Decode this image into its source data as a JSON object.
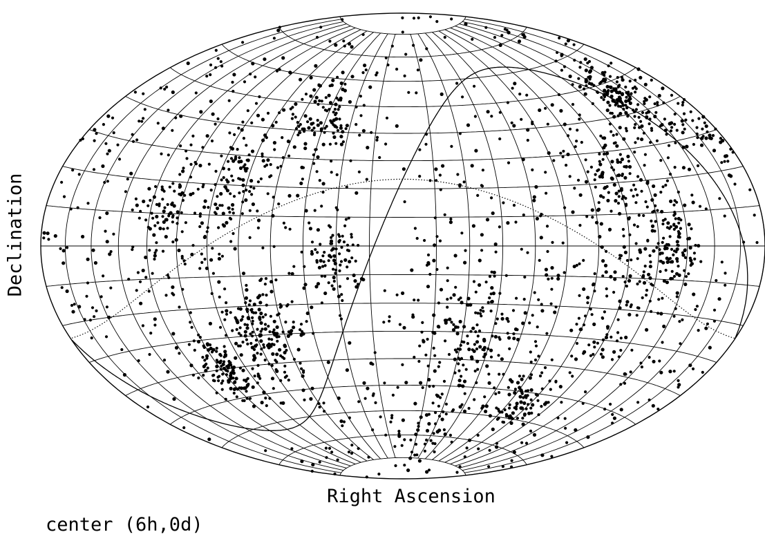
{
  "chart_data": {
    "type": "scatter",
    "title": "",
    "projection": "Aitoff-Hammer equal-area all-sky",
    "xlabel": "Right Ascension",
    "ylabel": "Declination",
    "caption": "center (6h,0d)",
    "center": {
      "ra_hours": 6,
      "dec_deg": 0
    },
    "grid": true,
    "grid_ra_step_hours": 1,
    "grid_dec_step_deg": 10,
    "reference_curves": [
      "celestial equator of a second coordinate system (solid S-curve)",
      "boundary circle (dotted)"
    ],
    "point_color": "#000000",
    "line_color": "#000000",
    "series": [
      {
        "clusters": [
          {
            "ra_hours": 9.0,
            "dec_deg": 45,
            "count": 90,
            "spread": 8
          },
          {
            "ra_hours": 11.5,
            "dec_deg": 20,
            "count": 110,
            "spread": 10
          },
          {
            "ra_hours": 10.5,
            "dec_deg": -30,
            "count": 150,
            "spread": 9
          },
          {
            "ra_hours": 12.8,
            "dec_deg": -40,
            "count": 120,
            "spread": 6
          },
          {
            "ra_hours": 8.0,
            "dec_deg": -5,
            "count": 80,
            "spread": 7
          },
          {
            "ra_hours": 13.5,
            "dec_deg": 10,
            "count": 60,
            "spread": 7
          },
          {
            "ra_hours": 20.5,
            "dec_deg": 45,
            "count": 160,
            "spread": 7
          },
          {
            "ra_hours": 22.8,
            "dec_deg": 20,
            "count": 110,
            "spread": 10
          },
          {
            "ra_hours": 21.5,
            "dec_deg": 0,
            "count": 90,
            "spread": 7
          },
          {
            "ra_hours": 3.5,
            "dec_deg": -30,
            "count": 130,
            "spread": 12
          },
          {
            "ra_hours": 23.0,
            "dec_deg": -20,
            "count": 70,
            "spread": 10
          },
          {
            "ra_hours": 18.5,
            "dec_deg": 30,
            "count": 60,
            "spread": 8
          },
          {
            "ra_hours": 0.5,
            "dec_deg": -55,
            "count": 80,
            "spread": 6
          },
          {
            "ra_hours": 5.5,
            "dec_deg": -65,
            "count": 40,
            "spread": 8
          }
        ],
        "background_count": 1100
      }
    ]
  }
}
